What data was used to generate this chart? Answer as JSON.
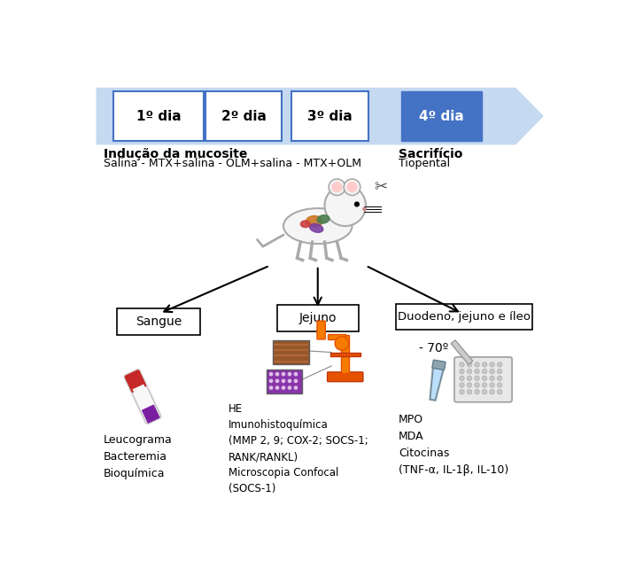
{
  "bg_color": "#ffffff",
  "arrow_color": "#c5d9f1",
  "arrow_dark_color": "#4472c4",
  "box_edge_color": "#4472c4",
  "day_boxes": [
    "1º dia",
    "2º dia",
    "3º dia",
    "4º dia"
  ],
  "inducao_bold": "Indução da mucosite",
  "inducao_text": "Salina - MTX+salina - OLM+salina - MTX+OLM",
  "sacrificio_bold": "Sacrifício",
  "sacrificio_text": "Tiopental",
  "sangue_label": "Sangue",
  "jejuno_label": "Jejuno",
  "duodeno_label": "Duodeno, jejuno e íleo",
  "sangue_items": "Leucograma\nBacteremia\nBioquímica",
  "jejuno_items": "HE\nImunohistoquímica\n(MMP 2, 9; COX-2; SOCS-1;\nRANK/RANKL)\nMicroscopia Confocal\n(SOCS-1)",
  "direita_items": "MPO\nMDA\nCitocinas\n(TNF-α, IL-1β, IL-10)",
  "temp_label": "- 70º"
}
